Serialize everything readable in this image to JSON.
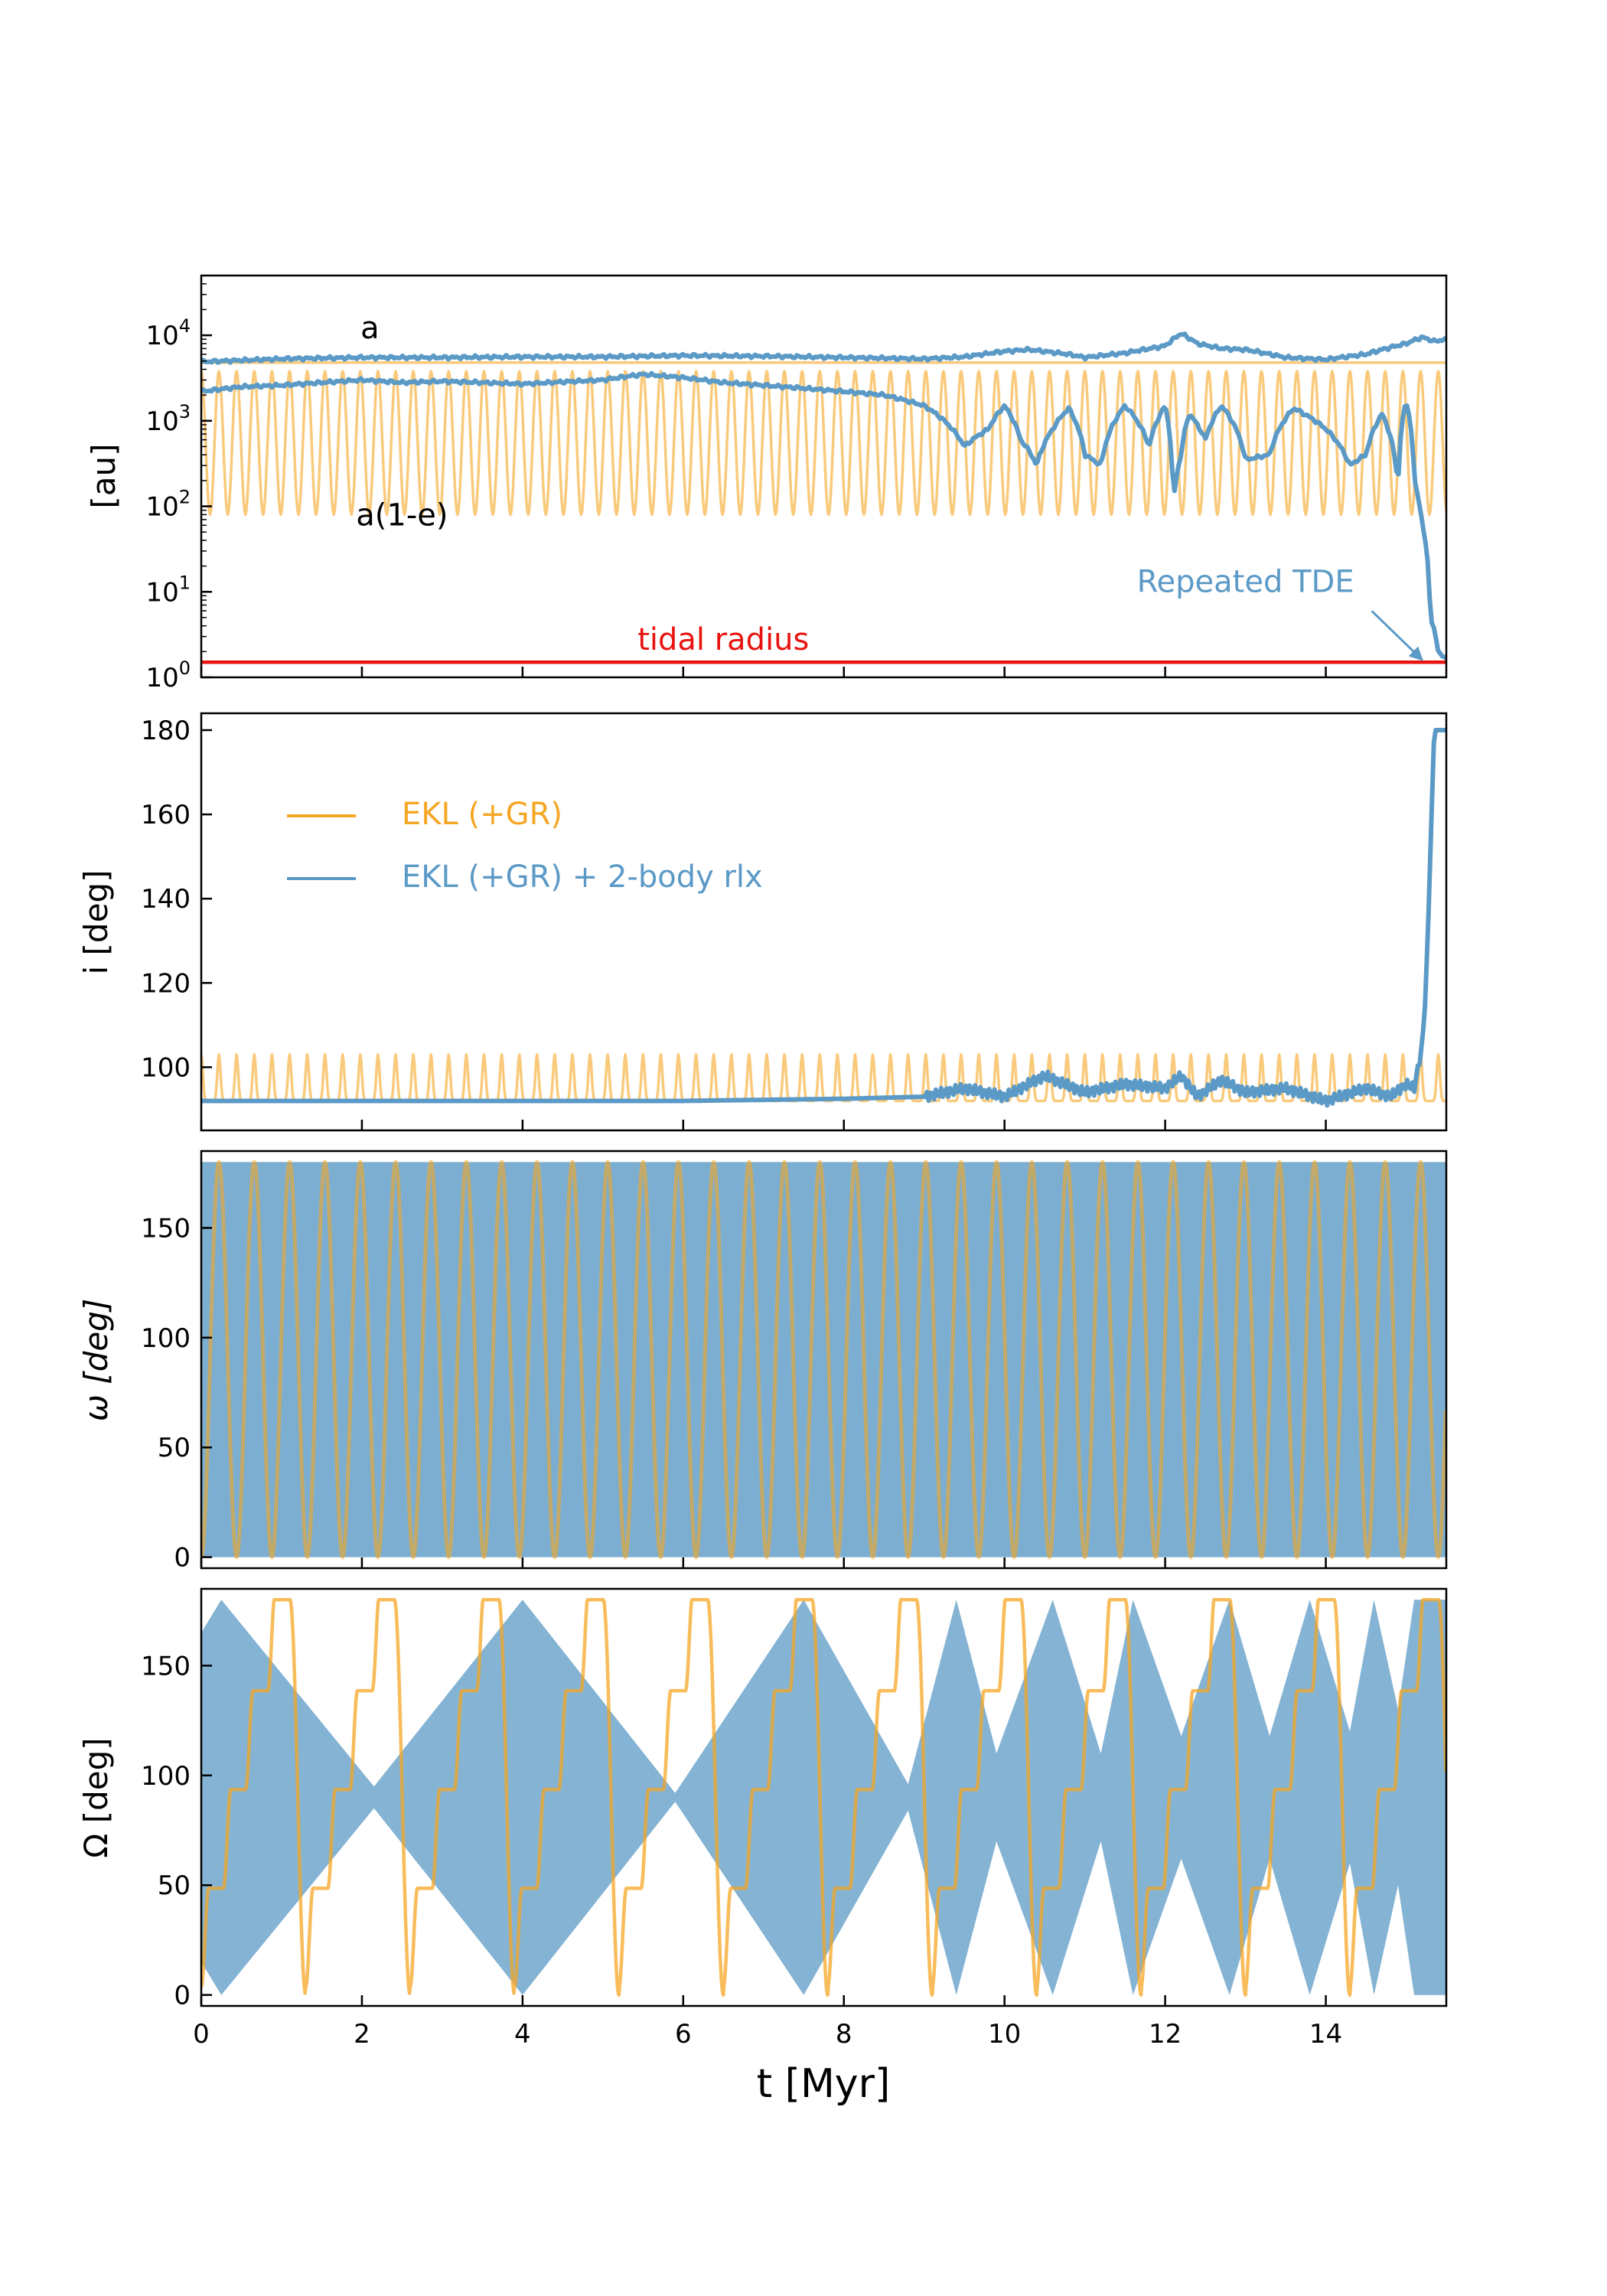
{
  "colors": {
    "orange": "#f5a623",
    "blue": "#5b9ac6",
    "red": "#e8130f",
    "frame": "#000000"
  },
  "xaxis": {
    "label": "t [Myr]",
    "range": [
      0,
      15.5
    ],
    "ticks": [
      0,
      2,
      4,
      6,
      8,
      10,
      12,
      14
    ],
    "tick_labels": [
      "0",
      "2",
      "4",
      "6",
      "8",
      "10",
      "12",
      "14"
    ]
  },
  "legend": {
    "placement": "upper-left of panel 2",
    "items": [
      {
        "label": "EKL (+GR)",
        "color": "#f5a623"
      },
      {
        "label": "EKL (+GR) + 2-body rlx",
        "color": "#5b9ac6"
      }
    ]
  },
  "chart_data": [
    {
      "type": "line",
      "ylabel": "[au]",
      "yscale": "log",
      "ylim": [
        1,
        50000
      ],
      "yticks": [
        1,
        10,
        100,
        1000,
        10000
      ],
      "ytick_labels": [
        {
          "base": "10",
          "exp": "0"
        },
        {
          "base": "10",
          "exp": "1"
        },
        {
          "base": "10",
          "exp": "2"
        },
        {
          "base": "10",
          "exp": "3"
        },
        {
          "base": "10",
          "exp": "4"
        }
      ],
      "annotations": [
        {
          "text": "a",
          "x": 2.1,
          "y": 9200,
          "color": "#000000"
        },
        {
          "text": "a(1-e)",
          "x": 2.5,
          "y": 60,
          "color": "#000000"
        },
        {
          "text": "tidal radius",
          "x": 6.5,
          "y": 2.1,
          "color": "#e8130f"
        },
        {
          "text": "Repeated TDE",
          "x": 13,
          "y": 10,
          "color": "#5b9ac6",
          "arrow_to": {
            "x": 15.2,
            "y": 1.6
          }
        }
      ],
      "series": [
        {
          "name": "EKL (+GR)",
          "label": "a",
          "x": [
            0,
            15.5
          ],
          "y": [
            4800,
            4800
          ]
        },
        {
          "name": "EKL (+GR)",
          "label": "a(1-e)",
          "pattern": "oscillation",
          "period": 0.22,
          "min": 80,
          "max": 3800,
          "x_start": 0,
          "x_end": 15.5
        },
        {
          "name": "EKL (+GR) + 2-body rlx",
          "label": "a",
          "x": [
            0,
            1,
            2,
            3,
            4,
            5,
            6,
            7,
            8,
            9,
            9.5,
            10,
            10.3,
            10.8,
            11,
            11.5,
            12,
            12.2,
            12.4,
            12.7,
            13,
            13.5,
            14,
            14.5,
            15,
            15.2,
            15.35,
            15.5
          ],
          "y": [
            4900,
            5300,
            5500,
            5500,
            5600,
            5600,
            5800,
            5700,
            5500,
            5300,
            5600,
            6500,
            6800,
            6000,
            5500,
            6200,
            7500,
            10500,
            8000,
            7000,
            6800,
            5500,
            5200,
            6000,
            8000,
            9500,
            8500,
            9000
          ]
        },
        {
          "name": "EKL (+GR) + 2-body rlx",
          "label": "a(1-e)",
          "x": [
            0,
            0.5,
            1,
            2,
            2.5,
            3,
            4,
            5,
            5.5,
            6,
            6.5,
            7,
            7.5,
            8,
            8.5,
            9,
            9.3,
            9.5,
            9.8,
            10,
            10.2,
            10.4,
            10.6,
            10.8,
            11,
            11.2,
            11.5,
            11.8,
            12,
            12.1,
            12.2,
            12.3,
            12.5,
            12.7,
            13,
            13.3,
            13.6,
            14,
            14.3,
            14.5,
            14.7,
            14.9,
            15,
            15.1,
            15.2,
            15.3,
            15.4,
            15.5
          ],
          "y": [
            2200,
            2500,
            2600,
            3000,
            2800,
            2900,
            2700,
            3000,
            3500,
            3200,
            2800,
            2600,
            2400,
            2200,
            2000,
            1500,
            900,
            500,
            800,
            1500,
            600,
            300,
            800,
            1400,
            400,
            300,
            1500,
            500,
            1500,
            100,
            400,
            1200,
            600,
            1500,
            350,
            400,
            1400,
            800,
            300,
            400,
            1200,
            150,
            1700,
            200,
            60,
            5,
            2,
            1.6
          ]
        },
        {
          "name": "tidal radius",
          "x": [
            0,
            15.5
          ],
          "y": [
            1.5,
            1.5
          ]
        }
      ]
    },
    {
      "type": "line",
      "ylabel": "i [deg]",
      "ylim": [
        85,
        184
      ],
      "yticks": [
        100,
        120,
        140,
        160,
        180
      ],
      "ytick_labels": [
        "100",
        "120",
        "140",
        "160",
        "180"
      ],
      "series": [
        {
          "name": "EKL (+GR)",
          "pattern": "oscillation",
          "period": 0.22,
          "min": 92,
          "max": 103,
          "x_start": 0,
          "x_end": 15.5
        },
        {
          "name": "EKL (+GR) + 2-body rlx",
          "x": [
            0,
            2,
            4,
            6,
            8,
            9,
            9.5,
            10,
            10.3,
            10.5,
            11,
            11.5,
            12,
            12.2,
            12.4,
            12.7,
            13,
            13.5,
            14,
            14.5,
            14.8,
            15,
            15.1,
            15.2,
            15.25,
            15.3,
            15.35,
            15.4,
            15.5
          ],
          "y": [
            92,
            92,
            92,
            92,
            92.5,
            93,
            95,
            93,
            96,
            98,
            94,
            96,
            95,
            98,
            93,
            97,
            94,
            95,
            92,
            95,
            93,
            96,
            95,
            105,
            120,
            150,
            180,
            180,
            180
          ]
        }
      ]
    },
    {
      "type": "line",
      "ylabel": "ω [deg]",
      "ylim": [
        -5,
        185
      ],
      "yticks": [
        0,
        50,
        100,
        150
      ],
      "ytick_labels": [
        "0",
        "50",
        "100",
        "150"
      ],
      "series": [
        {
          "name": "EKL (+GR) + 2-body rlx",
          "pattern": "dense-fill",
          "min": 0,
          "max": 180,
          "x_start": 0,
          "x_end": 15.5
        },
        {
          "name": "EKL (+GR)",
          "pattern": "circulation",
          "period": 0.44,
          "min": 0,
          "max": 180,
          "x_start": 0,
          "x_end": 15.5
        }
      ]
    },
    {
      "type": "line",
      "ylabel": "Ω [deg]",
      "ylim": [
        -5,
        185
      ],
      "yticks": [
        0,
        50,
        100,
        150
      ],
      "ytick_labels": [
        "0",
        "50",
        "100",
        "150"
      ],
      "series": [
        {
          "name": "EKL (+GR) + 2-body rlx",
          "pattern": "envelope",
          "x": [
            0,
            0.25,
            2.15,
            4.0,
            5.9,
            7.5,
            8.8,
            9.4,
            9.9,
            10.6,
            11.2,
            11.6,
            12.2,
            12.8,
            13.3,
            13.8,
            14.3,
            14.6,
            14.9,
            15.1,
            15.3,
            15.5
          ],
          "top": [
            165,
            180,
            95,
            180,
            92,
            180,
            96,
            180,
            110,
            180,
            110,
            180,
            118,
            180,
            118,
            180,
            120,
            180,
            130,
            180,
            180,
            180
          ],
          "bottom": [
            15,
            0,
            85,
            0,
            88,
            0,
            84,
            0,
            70,
            0,
            70,
            0,
            62,
            0,
            62,
            0,
            60,
            0,
            50,
            0,
            0,
            0
          ]
        },
        {
          "name": "EKL (+GR)",
          "pattern": "staircase",
          "period": 1.3,
          "min": 0,
          "max": 180,
          "x_start": 0,
          "x_end": 15.5
        }
      ]
    }
  ]
}
